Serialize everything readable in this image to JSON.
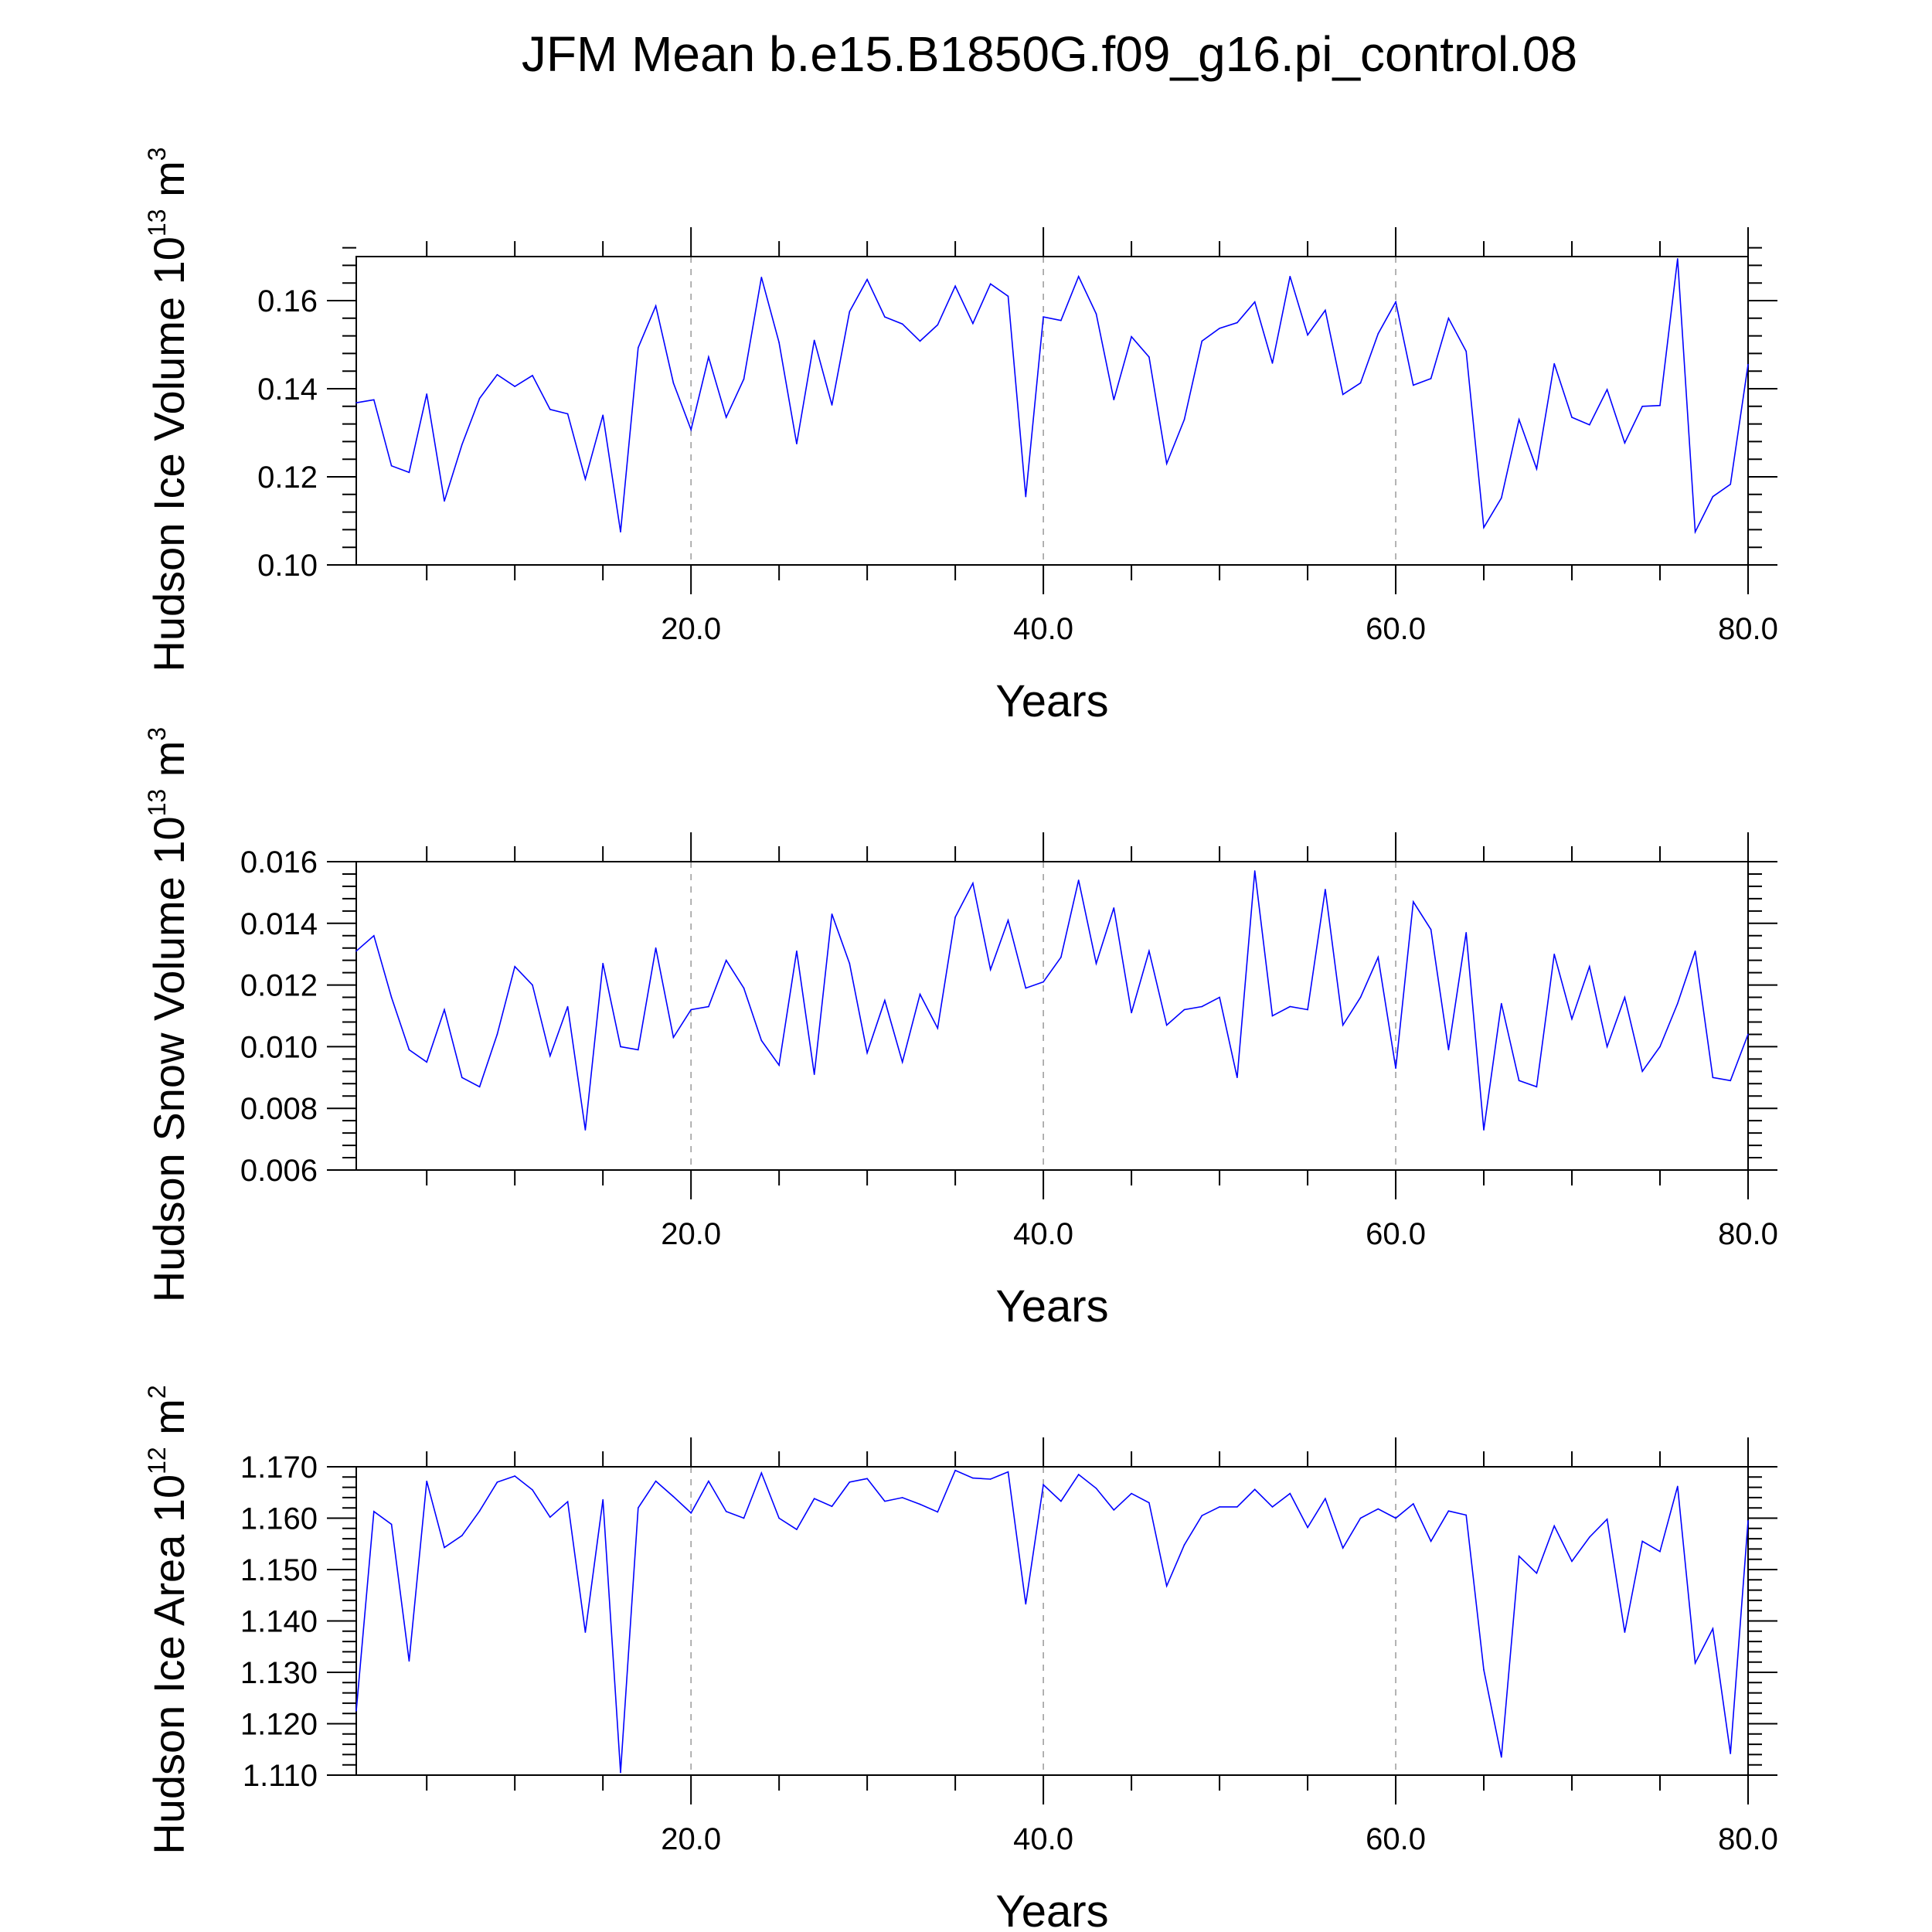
{
  "title": "JFM Mean b.e15.B1850G.f09_g16.pi_control.08",
  "chart_data": [
    {
      "type": "line",
      "ylabel": {
        "main": "Hudson Ice Volume 10",
        "exp": "13",
        "unit": " m",
        "unit_exp": "3"
      },
      "xlabel": "Years",
      "xlim": [
        1,
        80
      ],
      "ylim": [
        0.1,
        0.17
      ],
      "yticks": [
        0.1,
        0.12,
        0.14,
        0.16
      ],
      "ytick_labels": [
        "0.10",
        "0.12",
        "0.14",
        "0.16"
      ],
      "xticks": [
        20,
        40,
        60,
        80
      ],
      "xtick_labels": [
        "20.0",
        "40.0",
        "60.0",
        "80.0"
      ],
      "grid": "vertical dashed at major x ticks",
      "line_color": "#0000ff",
      "x": [
        1,
        2,
        3,
        4,
        5,
        6,
        7,
        8,
        9,
        10,
        11,
        12,
        13,
        14,
        15,
        16,
        17,
        18,
        19,
        20,
        21,
        22,
        23,
        24,
        25,
        26,
        27,
        28,
        29,
        30,
        31,
        32,
        33,
        34,
        35,
        36,
        37,
        38,
        39,
        40,
        41,
        42,
        43,
        44,
        45,
        46,
        47,
        48,
        49,
        50,
        51,
        52,
        53,
        54,
        55,
        56,
        57,
        58,
        59,
        60,
        61,
        62,
        63,
        64,
        65,
        66,
        67,
        68,
        69,
        70,
        71,
        72,
        73,
        74,
        75,
        76,
        77,
        78,
        79,
        80
      ],
      "values": [
        0.1368,
        0.1375,
        0.1225,
        0.121,
        0.1388,
        0.1145,
        0.1273,
        0.1378,
        0.1432,
        0.1405,
        0.143,
        0.1353,
        0.1343,
        0.1195,
        0.134,
        0.1075,
        0.1493,
        0.1588,
        0.1413,
        0.1307,
        0.1472,
        0.1335,
        0.1422,
        0.1653,
        0.1505,
        0.1275,
        0.151,
        0.1363,
        0.1575,
        0.1648,
        0.1563,
        0.1547,
        0.1508,
        0.1545,
        0.1633,
        0.1548,
        0.1638,
        0.161,
        0.1155,
        0.1563,
        0.1555,
        0.1655,
        0.157,
        0.1375,
        0.1518,
        0.1472,
        0.123,
        0.133,
        0.1508,
        0.1537,
        0.155,
        0.1597,
        0.1458,
        0.1655,
        0.1522,
        0.1578,
        0.1387,
        0.1413,
        0.1525,
        0.1597,
        0.1408,
        0.1423,
        0.156,
        0.1485,
        0.1085,
        0.1152,
        0.133,
        0.1218,
        0.1457,
        0.1335,
        0.1318,
        0.1398,
        0.1277,
        0.136,
        0.1362,
        0.1695,
        0.1075,
        0.1155,
        0.1183,
        0.1455
      ]
    },
    {
      "type": "line",
      "ylabel": {
        "main": "Hudson Snow Volume 10",
        "exp": "13",
        "unit": " m",
        "unit_exp": "3"
      },
      "xlabel": "Years",
      "xlim": [
        1,
        80
      ],
      "ylim": [
        0.006,
        0.016
      ],
      "yticks": [
        0.006,
        0.008,
        0.01,
        0.012,
        0.014,
        0.016
      ],
      "ytick_labels": [
        "0.006",
        "0.008",
        "0.010",
        "0.012",
        "0.014",
        "0.016"
      ],
      "xticks": [
        20,
        40,
        60,
        80
      ],
      "xtick_labels": [
        "20.0",
        "40.0",
        "60.0",
        "80.0"
      ],
      "grid": "vertical dashed at major x ticks",
      "line_color": "#0000ff",
      "x": [
        1,
        2,
        3,
        4,
        5,
        6,
        7,
        8,
        9,
        10,
        11,
        12,
        13,
        14,
        15,
        16,
        17,
        18,
        19,
        20,
        21,
        22,
        23,
        24,
        25,
        26,
        27,
        28,
        29,
        30,
        31,
        32,
        33,
        34,
        35,
        36,
        37,
        38,
        39,
        40,
        41,
        42,
        43,
        44,
        45,
        46,
        47,
        48,
        49,
        50,
        51,
        52,
        53,
        54,
        55,
        56,
        57,
        58,
        59,
        60,
        61,
        62,
        63,
        64,
        65,
        66,
        67,
        68,
        69,
        70,
        71,
        72,
        73,
        74,
        75,
        76,
        77,
        78,
        79,
        80
      ],
      "values": [
        0.0131,
        0.0136,
        0.0116,
        0.0099,
        0.0095,
        0.0112,
        0.009,
        0.0087,
        0.0104,
        0.0126,
        0.012,
        0.0097,
        0.0113,
        0.0073,
        0.0127,
        0.01,
        0.0099,
        0.0132,
        0.0103,
        0.0112,
        0.0113,
        0.0128,
        0.0119,
        0.0102,
        0.0094,
        0.0131,
        0.0091,
        0.0143,
        0.0127,
        0.0098,
        0.0115,
        0.0095,
        0.0117,
        0.0106,
        0.0142,
        0.0153,
        0.0125,
        0.0141,
        0.0119,
        0.0121,
        0.0129,
        0.0154,
        0.0127,
        0.0145,
        0.0111,
        0.0131,
        0.0107,
        0.0112,
        0.0113,
        0.0116,
        0.009,
        0.0157,
        0.011,
        0.0113,
        0.0112,
        0.0151,
        0.0107,
        0.0116,
        0.0129,
        0.0093,
        0.0147,
        0.0138,
        0.0099,
        0.0137,
        0.0073,
        0.0114,
        0.0089,
        0.0087,
        0.013,
        0.0109,
        0.0126,
        0.01,
        0.0116,
        0.0092,
        0.01,
        0.0114,
        0.0131,
        0.009,
        0.0089,
        0.0104
      ]
    },
    {
      "type": "line",
      "ylabel": {
        "main": "Hudson Ice Area 10",
        "exp": "12",
        "unit": " m",
        "unit_exp": "2"
      },
      "xlabel": "Years",
      "xlim": [
        1,
        80
      ],
      "ylim": [
        1.11,
        1.17
      ],
      "yticks": [
        1.11,
        1.12,
        1.13,
        1.14,
        1.15,
        1.16,
        1.17
      ],
      "ytick_labels": [
        "1.110",
        "1.120",
        "1.130",
        "1.140",
        "1.150",
        "1.160",
        "1.170"
      ],
      "xticks": [
        20,
        40,
        60,
        80
      ],
      "xtick_labels": [
        "20.0",
        "40.0",
        "60.0",
        "80.0"
      ],
      "grid": "vertical dashed at major x ticks",
      "line_color": "#0000ff",
      "x": [
        1,
        2,
        3,
        4,
        5,
        6,
        7,
        8,
        9,
        10,
        11,
        12,
        13,
        14,
        15,
        16,
        17,
        18,
        19,
        20,
        21,
        22,
        23,
        24,
        25,
        26,
        27,
        28,
        29,
        30,
        31,
        32,
        33,
        34,
        35,
        36,
        37,
        38,
        39,
        40,
        41,
        42,
        43,
        44,
        45,
        46,
        47,
        48,
        49,
        50,
        51,
        52,
        53,
        54,
        55,
        56,
        57,
        58,
        59,
        60,
        61,
        62,
        63,
        64,
        65,
        66,
        67,
        68,
        69,
        70,
        71,
        72,
        73,
        74,
        75,
        76,
        77,
        78,
        79,
        80
      ],
      "values": [
        1.1225,
        1.1613,
        1.1588,
        1.1322,
        1.1672,
        1.1543,
        1.1566,
        1.1614,
        1.167,
        1.1682,
        1.1655,
        1.1602,
        1.1632,
        1.1378,
        1.1636,
        1.1105,
        1.162,
        1.1672,
        1.1642,
        1.161,
        1.1672,
        1.1613,
        1.16,
        1.1688,
        1.16,
        1.1578,
        1.1638,
        1.1623,
        1.167,
        1.1677,
        1.1633,
        1.164,
        1.1627,
        1.1612,
        1.1693,
        1.1678,
        1.1676,
        1.169,
        1.1433,
        1.1665,
        1.1633,
        1.1685,
        1.1658,
        1.1616,
        1.1648,
        1.163,
        1.1468,
        1.1548,
        1.1605,
        1.1622,
        1.1622,
        1.1656,
        1.1622,
        1.1648,
        1.1582,
        1.1638,
        1.1542,
        1.16,
        1.1618,
        1.16,
        1.1628,
        1.1555,
        1.1614,
        1.1606,
        1.1305,
        1.1135,
        1.1526,
        1.1493,
        1.1585,
        1.1516,
        1.1563,
        1.1598,
        1.1378,
        1.1555,
        1.1535,
        1.1662,
        1.1318,
        1.1385,
        1.1142,
        1.1595
      ]
    }
  ]
}
